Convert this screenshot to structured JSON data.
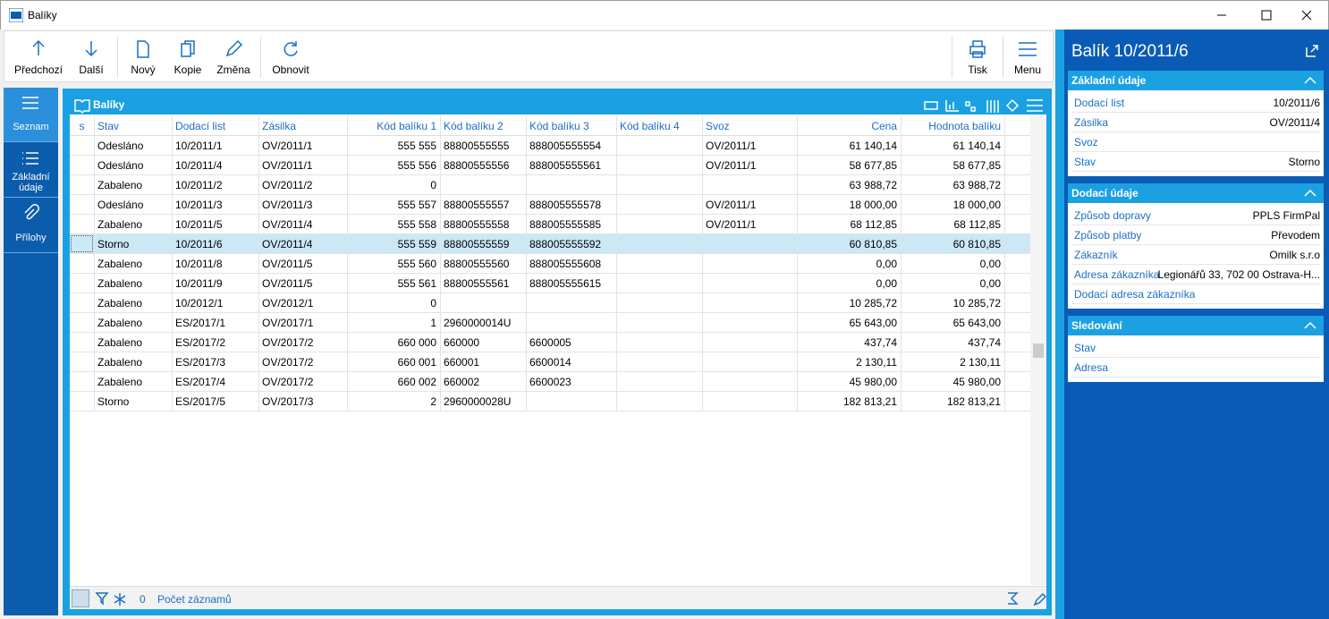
{
  "window": {
    "title": "Balíky"
  },
  "toolbar": {
    "left": [
      "Předchozí",
      "Další",
      "Nový",
      "Kopie",
      "Změna",
      "Obnovit"
    ],
    "right": [
      "Tisk",
      "Menu"
    ]
  },
  "sidebar": [
    "Seznam",
    "Základní údaje",
    "Přílohy"
  ],
  "grid": {
    "title": "Balíky",
    "columns": [
      "s",
      "Stav",
      "Dodací list",
      "Zásilka",
      "Kód balíku 1",
      "Kód balíku 2",
      "Kód balíku 3",
      "Kód balíku 4",
      "Svoz",
      "Cena",
      "Hodnota balíku"
    ],
    "rows": [
      [
        null,
        "Odesláno",
        "10/2011/1",
        "OV/2011/1",
        "555 555",
        "88800555555",
        "888005555554",
        null,
        "OV/2011/1",
        "61 140,14",
        "61 140,14"
      ],
      [
        null,
        "Odesláno",
        "10/2011/4",
        "OV/2011/1",
        "555 556",
        "88800555556",
        "888005555561",
        null,
        "OV/2011/1",
        "58 677,85",
        "58 677,85"
      ],
      [
        null,
        "Zabaleno",
        "10/2011/2",
        "OV/2011/2",
        "0",
        null,
        null,
        null,
        null,
        "63 988,72",
        "63 988,72"
      ],
      [
        null,
        "Odesláno",
        "10/2011/3",
        "OV/2011/3",
        "555 557",
        "88800555557",
        "888005555578",
        null,
        "OV/2011/1",
        "18 000,00",
        "18 000,00"
      ],
      [
        null,
        "Zabaleno",
        "10/2011/5",
        "OV/2011/4",
        "555 558",
        "88800555558",
        "888005555585",
        null,
        "OV/2011/1",
        "68 112,85",
        "68 112,85"
      ],
      [
        null,
        "Storno",
        "10/2011/6",
        "OV/2011/4",
        "555 559",
        "88800555559",
        "888005555592",
        null,
        null,
        "60 810,85",
        "60 810,85"
      ],
      [
        null,
        "Zabaleno",
        "10/2011/8",
        "OV/2011/5",
        "555 560",
        "88800555560",
        "888005555608",
        null,
        null,
        "0,00",
        "0,00"
      ],
      [
        null,
        "Zabaleno",
        "10/2011/9",
        "OV/2011/5",
        "555 561",
        "88800555561",
        "888005555615",
        null,
        null,
        "0,00",
        "0,00"
      ],
      [
        null,
        "Zabaleno",
        "10/2012/1",
        "OV/2012/1",
        "0",
        null,
        null,
        null,
        null,
        "10 285,72",
        "10 285,72"
      ],
      [
        null,
        "Zabaleno",
        "ES/2017/1",
        "OV/2017/1",
        "1",
        "2960000014U",
        null,
        null,
        null,
        "65 643,00",
        "65 643,00"
      ],
      [
        null,
        "Zabaleno",
        "ES/2017/2",
        "OV/2017/2",
        "660 000",
        "660000",
        "6600005",
        null,
        null,
        "437,74",
        "437,74"
      ],
      [
        null,
        "Zabaleno",
        "ES/2017/3",
        "OV/2017/2",
        "660 001",
        "660001",
        "6600014",
        null,
        null,
        "2 130,11",
        "2 130,11"
      ],
      [
        null,
        "Zabaleno",
        "ES/2017/4",
        "OV/2017/2",
        "660 002",
        "660002",
        "6600023",
        null,
        null,
        "45 980,00",
        "45 980,00"
      ],
      [
        null,
        "Storno",
        "ES/2017/5",
        "OV/2017/3",
        "2",
        "2960000028U",
        null,
        null,
        null,
        "182 813,21",
        "182 813,21"
      ]
    ],
    "selected_row": 5,
    "footer": {
      "filter_count": "0",
      "label": "Počet záznamů"
    }
  },
  "detail": {
    "title": "Balík 10/2011/6",
    "sections": [
      {
        "title": "Základní údaje",
        "fields": [
          {
            "label": "Dodací list",
            "value": "10/2011/6"
          },
          {
            "label": "Zásilka",
            "value": "OV/2011/4"
          },
          {
            "label": "Svoz"
          },
          {
            "label": "Stav",
            "value": "Storno"
          }
        ]
      },
      {
        "title": "Dodací údaje",
        "fields": [
          {
            "label": "Způsob dopravy",
            "value": "PPLS FirmPal"
          },
          {
            "label": "Způsob platby",
            "value": "Převodem"
          },
          {
            "label": "Zákazník",
            "value": "Omilk s.r.o"
          },
          {
            "label": "Adresa zákazníka",
            "value": "Legionářů 33, 702 00  Ostrava-H..."
          },
          {
            "label": "Dodací adresa zákazníka"
          }
        ]
      },
      {
        "title": "Sledování",
        "fields": [
          {
            "label": "Stav"
          },
          {
            "label": "Adresa"
          }
        ]
      }
    ]
  }
}
